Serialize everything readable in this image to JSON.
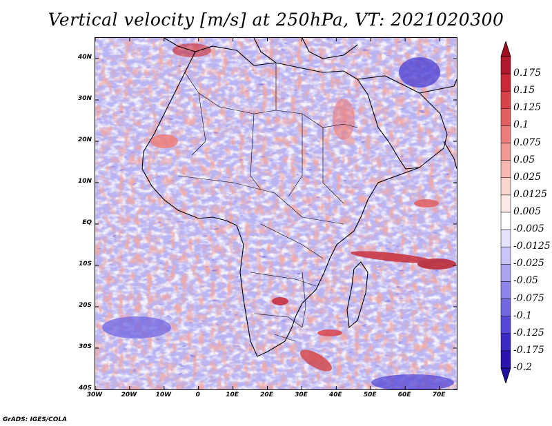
{
  "title": "Vertical velocity [m/s] at 250hPa, VT: 2021020300",
  "footer": "GrADS: IGES/COLA",
  "map": {
    "lon_range": [
      -30,
      75
    ],
    "lat_range": [
      -40,
      45
    ],
    "lat_ticks": [
      {
        "value": 40,
        "label": "40N"
      },
      {
        "value": 30,
        "label": "30N"
      },
      {
        "value": 20,
        "label": "20N"
      },
      {
        "value": 10,
        "label": "10N"
      },
      {
        "value": 0,
        "label": "EQ"
      },
      {
        "value": -10,
        "label": "10S"
      },
      {
        "value": -20,
        "label": "20S"
      },
      {
        "value": -30,
        "label": "30S"
      },
      {
        "value": -40,
        "label": "40S"
      }
    ],
    "lon_ticks": [
      {
        "value": -30,
        "label": "30W"
      },
      {
        "value": -20,
        "label": "20W"
      },
      {
        "value": -10,
        "label": "10W"
      },
      {
        "value": 0,
        "label": "0"
      },
      {
        "value": 10,
        "label": "10E"
      },
      {
        "value": 20,
        "label": "20E"
      },
      {
        "value": 30,
        "label": "30E"
      },
      {
        "value": 40,
        "label": "40E"
      },
      {
        "value": 50,
        "label": "50E"
      },
      {
        "value": 60,
        "label": "60E"
      },
      {
        "value": 70,
        "label": "70E"
      }
    ]
  },
  "colorbar": {
    "levels": [
      {
        "label": "0.175",
        "color": "#b2182b"
      },
      {
        "label": "0.15",
        "color": "#c92a35"
      },
      {
        "label": "0.125",
        "color": "#d8434a"
      },
      {
        "label": "0.1",
        "color": "#e35f60"
      },
      {
        "label": "0.075",
        "color": "#ec7c79"
      },
      {
        "label": "0.05",
        "color": "#f29a94"
      },
      {
        "label": "0.025",
        "color": "#f7b8b2"
      },
      {
        "label": "0.0125",
        "color": "#fbd5d0"
      },
      {
        "label": "0.005",
        "color": "#fdeae7"
      },
      {
        "label": "-0.005",
        "color": "#ffffff"
      },
      {
        "label": "-0.0125",
        "color": "#e4e2fb"
      },
      {
        "label": "-0.025",
        "color": "#c9c5f6"
      },
      {
        "label": "-0.05",
        "color": "#aba5f0"
      },
      {
        "label": "-0.075",
        "color": "#8e86ea"
      },
      {
        "label": "-0.1",
        "color": "#7167e1"
      },
      {
        "label": "-0.125",
        "color": "#5648d6"
      },
      {
        "label": "-0.175",
        "color": "#3b2ac4"
      },
      {
        "label": "-0.2",
        "color": "#2a14ad"
      }
    ],
    "top_color": "#a01020",
    "bottom_color": "#2010a0"
  }
}
